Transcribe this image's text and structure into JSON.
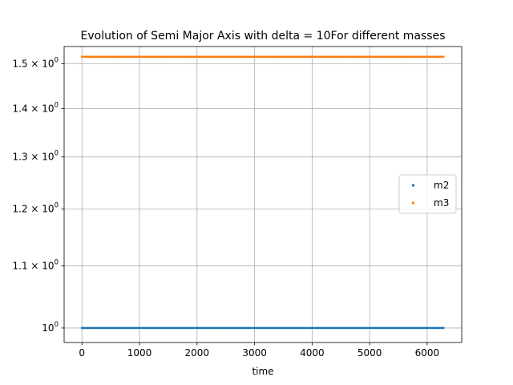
{
  "chart_data": {
    "type": "scatter",
    "title": "Evolution of Semi Major Axis with delta = 10For different masses",
    "xlabel": "time",
    "ylabel": "",
    "xlim": [
      -310,
      6600
    ],
    "ylim": [
      0.978,
      1.54
    ],
    "yscale": "log",
    "grid": true,
    "legend": "center-right",
    "x_ticks": [
      0,
      1000,
      2000,
      3000,
      4000,
      5000,
      6000
    ],
    "y_ticks": [
      1.0,
      1.1,
      1.2,
      1.3,
      1.4,
      1.5
    ],
    "y_tick_labels": [
      {
        "base": "10",
        "exp": "0",
        "prefix": ""
      },
      {
        "base": "10",
        "exp": "0",
        "prefix": "1.1 × "
      },
      {
        "base": "10",
        "exp": "0",
        "prefix": "1.2 × "
      },
      {
        "base": "10",
        "exp": "0",
        "prefix": "1.3 × "
      },
      {
        "base": "10",
        "exp": "0",
        "prefix": "1.4 × "
      },
      {
        "base": "10",
        "exp": "0",
        "prefix": "1.5 × "
      }
    ],
    "series": [
      {
        "name": "m2",
        "color": "#1f77b4",
        "x_start": 0,
        "x_end": 6283,
        "y": 1.0
      },
      {
        "name": "m3",
        "color": "#ff7f0e",
        "x_start": 0,
        "x_end": 6283,
        "y": 1.516
      }
    ]
  }
}
